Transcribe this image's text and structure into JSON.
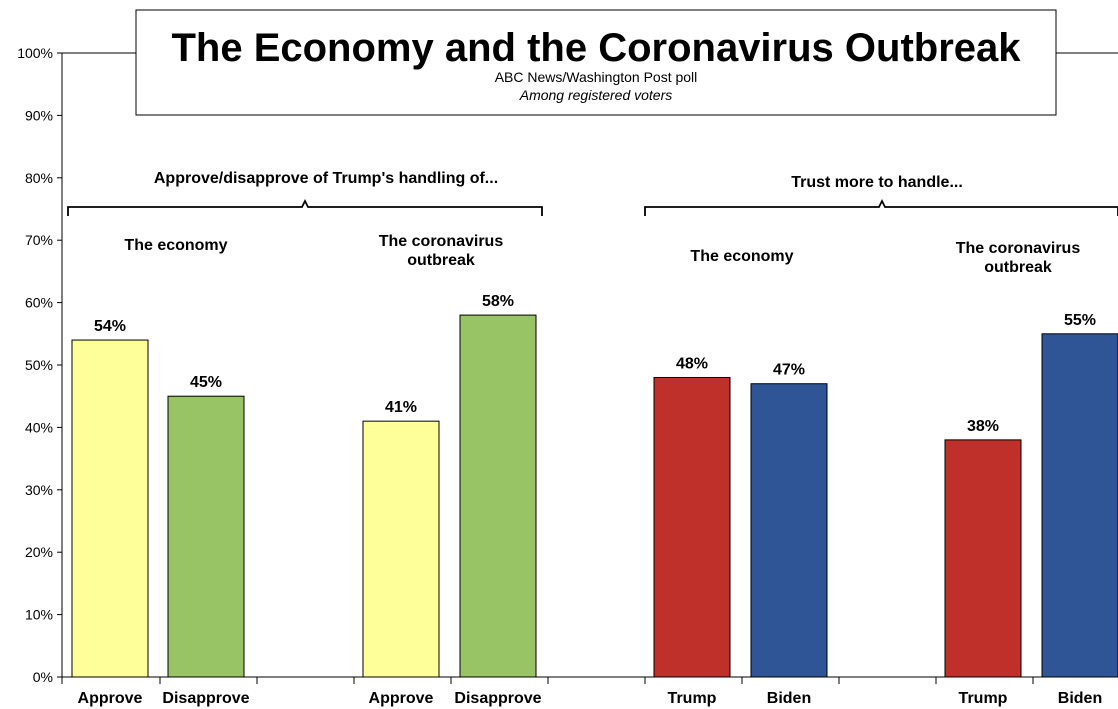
{
  "chart_data": {
    "type": "bar",
    "title": "The Economy and the Coronavirus Outbreak",
    "subtitle": "ABC News/Washington  Post poll",
    "subtitle2": "Among registered voters",
    "ylim": [
      0,
      100
    ],
    "yticks": [
      "0%",
      "10%",
      "20%",
      "30%",
      "40%",
      "50%",
      "60%",
      "70%",
      "80%",
      "90%",
      "100%"
    ],
    "bracket_labels": [
      "Approve/disapprove of Trump's handling of...",
      "Trust more to handle..."
    ],
    "groups": [
      {
        "label": [
          "The economy"
        ],
        "bars": [
          {
            "category": "Approve",
            "value": 54,
            "label": "54%",
            "color": "#FFFF99"
          },
          {
            "category": "Disapprove",
            "value": 45,
            "label": "45%",
            "color": "#99C466"
          }
        ]
      },
      {
        "label": [
          "The coronavirus",
          "outbreak"
        ],
        "bars": [
          {
            "category": "Approve",
            "value": 41,
            "label": "41%",
            "color": "#FFFF99"
          },
          {
            "category": "Disapprove",
            "value": 58,
            "label": "58%",
            "color": "#99C466"
          }
        ]
      },
      {
        "label": [
          "The economy"
        ],
        "bars": [
          {
            "category": "Trump",
            "value": 48,
            "label": "48%",
            "color": "#C0302B"
          },
          {
            "category": "Biden",
            "value": 47,
            "label": "47%",
            "color": "#2F5597"
          }
        ]
      },
      {
        "label": [
          "The coronavirus",
          "outbreak"
        ],
        "bars": [
          {
            "category": "Trump",
            "value": 38,
            "label": "38%",
            "color": "#C0302B"
          },
          {
            "category": "Biden",
            "value": 55,
            "label": "55%",
            "color": "#2F5597"
          }
        ]
      }
    ]
  }
}
